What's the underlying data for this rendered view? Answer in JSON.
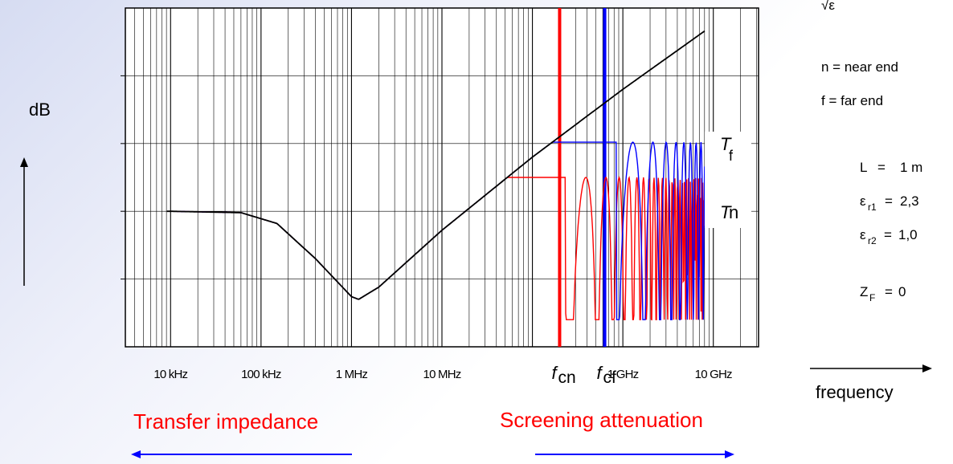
{
  "chart_data": {
    "type": "line",
    "xscale": "log",
    "xlim": [
      "3 kHz",
      "30 GHz"
    ],
    "ylabel": "dB",
    "xlabel": "frequency",
    "grid": true,
    "x_tick_labels": [
      "10 kHz",
      "100 kHz",
      "1 MHz",
      "10 MHz",
      "1 GHz",
      "10 GHz"
    ],
    "markers": [
      {
        "label_main": "f",
        "label_sub": "cn",
        "frequency_hz": 200000000,
        "color": "#ff0000"
      },
      {
        "label_main": "f",
        "label_sub": "cf",
        "frequency_hz": 630000000,
        "color": "#0000ff"
      }
    ],
    "series": [
      {
        "name": "",
        "color": "#000000",
        "note": "transfer impedance envelope",
        "points": [
          [
            10000,
            0
          ],
          [
            60000,
            -0.1
          ],
          [
            150000,
            -0.9
          ],
          [
            400000,
            -3.5
          ],
          [
            1000000,
            -6.3
          ],
          [
            1200000,
            -6.5
          ],
          [
            2000000,
            -5.6
          ],
          [
            10000000,
            -1.4
          ],
          [
            100000000,
            4.0
          ],
          [
            1000000000,
            9.0
          ],
          [
            8000000000,
            13.3
          ]
        ]
      },
      {
        "name_main": "T",
        "name_sub": "f",
        "color": "#0000ff",
        "plateau_db": 5.1
      },
      {
        "name_main": "T",
        "name_sub": "n",
        "color": "#ff0000",
        "plateau_db": 2.5
      }
    ]
  },
  "side_panel": {
    "formula_fragment": "√ε",
    "near_end": "n = near end",
    "far_end": "f = far end",
    "params": [
      {
        "name": "L",
        "sub": "",
        "value": "1 m"
      },
      {
        "name": "ε",
        "sub": "r1",
        "value": "2,3"
      },
      {
        "name": "ε",
        "sub": "r2",
        "value": "1,0"
      },
      {
        "name": "Z",
        "sub": "F",
        "value": "0"
      }
    ],
    "frequency_label": "frequency"
  },
  "captions": {
    "left": "Transfer impedance",
    "right": "Screening attenuation"
  }
}
